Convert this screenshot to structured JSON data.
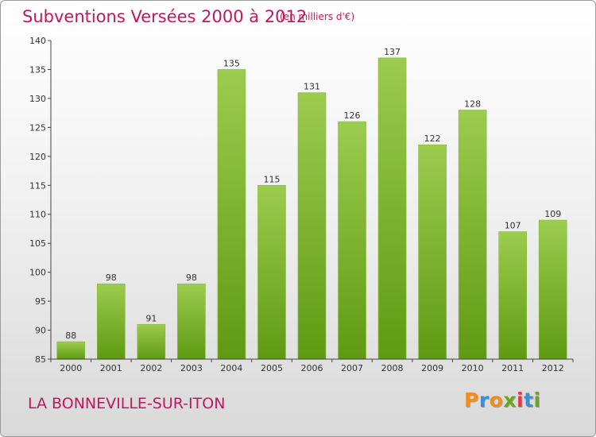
{
  "header": {
    "title": "Subventions Versées 2000 à 2012",
    "subtitle": "(en milliers d'€)"
  },
  "footer": {
    "commune": "LA BONNEVILLE-SUR-ITON",
    "brand_letters": [
      {
        "ch": "P",
        "color": "#f28c1a"
      },
      {
        "ch": "r",
        "color": "#3a8fd6"
      },
      {
        "ch": "o",
        "color": "#f28c1a"
      },
      {
        "ch": "x",
        "color": "#6aa61c"
      },
      {
        "ch": "i",
        "color": "#e63946"
      },
      {
        "ch": "t",
        "color": "#3a8fd6"
      },
      {
        "ch": "i",
        "color": "#6aa61c"
      }
    ]
  },
  "chart_data": {
    "type": "bar",
    "title": "Subventions Versées 2000 à 2012",
    "subtitle": "(en milliers d'€)",
    "categories": [
      "2000",
      "2001",
      "2002",
      "2003",
      "2004",
      "2005",
      "2006",
      "2007",
      "2008",
      "2009",
      "2010",
      "2011",
      "2012"
    ],
    "values": [
      88,
      98,
      91,
      98,
      135,
      115,
      131,
      126,
      137,
      122,
      128,
      107,
      109
    ],
    "ylim": [
      85,
      140
    ],
    "yticks": [
      85,
      90,
      95,
      100,
      105,
      110,
      115,
      120,
      125,
      130,
      135,
      140
    ],
    "grid": false,
    "bar_color_top": "#9ccc4e",
    "bar_color_bottom": "#5f9a12"
  }
}
